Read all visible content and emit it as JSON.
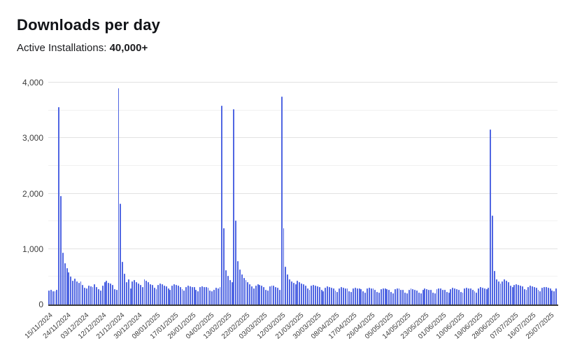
{
  "page": {
    "title": "Downloads per day",
    "subtitle_label": "Active Installations:",
    "subtitle_value": "40,000+"
  },
  "colors": {
    "bar_fill": "#5066e2",
    "bar_edge": "#6d80ea",
    "axis_line": "#3c3c3c",
    "gridline_major": "#e2e2e2",
    "gridline_minor": "#f1f1f1",
    "tick_text": "#3d3d3d",
    "title_text": "#111317"
  },
  "chart_data": {
    "type": "bar",
    "title": "Downloads per day",
    "subtitle": "Active Installations: 40,000+",
    "xlabel": "",
    "ylabel": "",
    "x_start_date": "15/11/2024",
    "x_end_date": "28/07/2025",
    "x_unit": "day",
    "x_tick_every_days": 9,
    "x_tick_labels": [
      "15/11/2024",
      "24/11/2024",
      "03/12/2024",
      "12/12/2024",
      "21/12/2024",
      "30/12/2024",
      "08/01/2025",
      "17/01/2025",
      "26/01/2025",
      "04/02/2025",
      "13/02/2025",
      "22/02/2025",
      "03/03/2025",
      "12/03/2025",
      "21/03/2025",
      "30/03/2025",
      "08/04/2025",
      "17/04/2025",
      "26/04/2025",
      "05/05/2025",
      "14/05/2025",
      "23/05/2025",
      "01/06/2025",
      "10/06/2025",
      "19/06/2025",
      "28/06/2025",
      "07/07/2025",
      "16/07/2025",
      "25/07/2025"
    ],
    "ylim": [
      0,
      4000
    ],
    "y_major_tick_step": 1000,
    "y_minor_tick_step": 500,
    "y_tick_labels": [
      "0",
      "1,000",
      "2,000",
      "3,000",
      "4,000"
    ],
    "grid": "horizontal major every 1000, minor every 500",
    "legend": "none",
    "peaks": [
      {
        "date": "20/11/2024",
        "value": 3560
      },
      {
        "date": "20/12/2024",
        "value": 3900
      },
      {
        "date": "10/02/2025",
        "value": 3580
      },
      {
        "date": "16/02/2025",
        "value": 3520
      },
      {
        "date": "12/03/2025",
        "value": 3750
      },
      {
        "date": "25/06/2025",
        "value": 3160
      }
    ],
    "values": [
      250,
      265,
      245,
      235,
      260,
      3560,
      1950,
      930,
      745,
      660,
      580,
      510,
      430,
      470,
      420,
      390,
      420,
      350,
      300,
      290,
      345,
      330,
      310,
      360,
      320,
      275,
      255,
      340,
      405,
      425,
      395,
      380,
      355,
      280,
      260,
      3900,
      1820,
      770,
      560,
      400,
      450,
      295,
      420,
      440,
      410,
      380,
      350,
      310,
      460,
      430,
      400,
      370,
      350,
      300,
      280,
      350,
      380,
      360,
      340,
      330,
      290,
      270,
      340,
      360,
      350,
      340,
      320,
      280,
      255,
      320,
      340,
      330,
      320,
      310,
      265,
      245,
      310,
      330,
      320,
      310,
      300,
      255,
      235,
      270,
      300,
      290,
      310,
      3580,
      1380,
      620,
      520,
      440,
      400,
      3520,
      1510,
      780,
      630,
      540,
      480,
      440,
      400,
      370,
      330,
      290,
      345,
      365,
      350,
      340,
      320,
      270,
      250,
      325,
      345,
      335,
      320,
      300,
      265,
      3750,
      1380,
      680,
      540,
      450,
      420,
      390,
      365,
      425,
      405,
      385,
      360,
      340,
      285,
      260,
      335,
      350,
      340,
      325,
      310,
      260,
      240,
      305,
      325,
      315,
      300,
      290,
      250,
      230,
      295,
      315,
      305,
      295,
      285,
      245,
      225,
      285,
      305,
      295,
      285,
      275,
      235,
      215,
      285,
      305,
      295,
      285,
      270,
      230,
      210,
      275,
      295,
      285,
      275,
      260,
      225,
      205,
      275,
      295,
      285,
      270,
      260,
      220,
      205,
      265,
      285,
      275,
      265,
      255,
      215,
      200,
      270,
      290,
      280,
      270,
      260,
      220,
      205,
      275,
      295,
      285,
      270,
      260,
      225,
      210,
      280,
      300,
      290,
      280,
      265,
      230,
      215,
      285,
      305,
      295,
      285,
      270,
      235,
      220,
      290,
      310,
      300,
      290,
      280,
      300,
      3160,
      1600,
      600,
      460,
      420,
      380,
      420,
      450,
      430,
      400,
      340,
      310,
      350,
      370,
      355,
      340,
      325,
      280,
      260,
      320,
      340,
      330,
      320,
      305,
      265,
      245,
      300,
      320,
      310,
      300,
      290,
      250,
      235,
      295
    ]
  }
}
